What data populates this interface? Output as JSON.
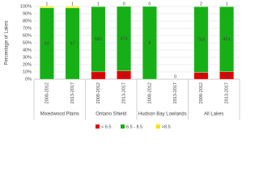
{
  "chart_data": {
    "type": "stacked_percent_bar",
    "y_label": "Percentage of Lakes",
    "categories": [
      "2008-2012",
      "2013-2017",
      "2008-2012",
      "2013-2017",
      "2008-2012",
      "2013-2017",
      "2008-2012",
      "2013-2017"
    ],
    "groups": [
      "Mixedwood Plains",
      "Ontario Shield",
      "Hudson Bay Lowlands",
      "All Lakes"
    ],
    "series": [
      {
        "name": "< 6.5",
        "color": "#e00000",
        "values": [
          0,
          0,
          77,
          48,
          0,
          0,
          77,
          48
        ]
      },
      {
        "name": "6.5 - 8.5",
        "color": "#16b016",
        "values": [
          52,
          47,
          683,
          374,
          8,
          0,
          743,
          421
        ]
      },
      {
        "name": ">8.5",
        "color": "#f5e400",
        "values": [
          1,
          1,
          1,
          0,
          0,
          0,
          2,
          1
        ]
      }
    ],
    "ylim": [
      0,
      100
    ],
    "yticks": [
      {
        "value": 0,
        "label": "0%"
      },
      {
        "value": 10,
        "label": "10%"
      },
      {
        "value": 20,
        "label": "20%"
      },
      {
        "value": 30,
        "label": "30%"
      },
      {
        "value": 40,
        "label": "40%"
      },
      {
        "value": 50,
        "label": "50%"
      },
      {
        "value": 60,
        "label": "60%"
      },
      {
        "value": 70,
        "label": "70%"
      },
      {
        "value": 80,
        "label": "80%"
      },
      {
        "value": 90,
        "label": "90%"
      },
      {
        "value": 100,
        "label": "100%"
      }
    ],
    "grid": true
  }
}
